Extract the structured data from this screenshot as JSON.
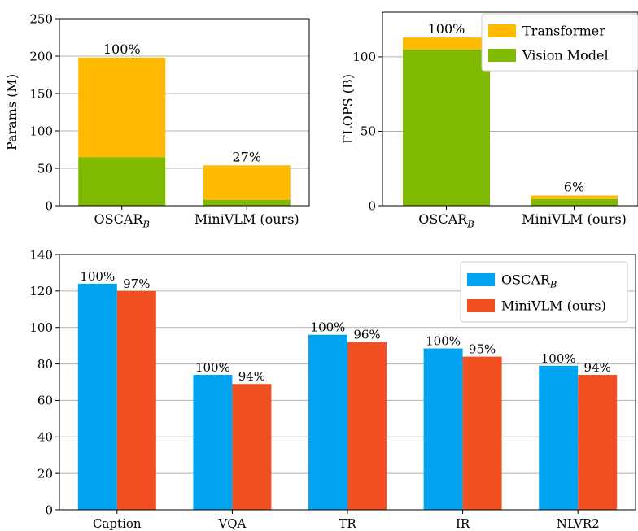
{
  "chart_data": [
    {
      "type": "bar",
      "stacked": true,
      "ylabel": "Params (M)",
      "ylim": [
        0,
        250
      ],
      "yticks": [
        0,
        50,
        100,
        150,
        200,
        250
      ],
      "categories": [
        {
          "main": "OSCAR",
          "sub": "B"
        },
        {
          "main": "MiniVLM (ours)",
          "sub": ""
        }
      ],
      "series": [
        {
          "name": "Vision Model",
          "color": "#7fba00",
          "values": [
            65,
            8
          ]
        },
        {
          "name": "Transformer",
          "color": "#ffb900",
          "values": [
            133,
            46
          ]
        }
      ],
      "bar_labels": [
        "100%",
        "27%"
      ],
      "grid": "y"
    },
    {
      "type": "bar",
      "stacked": true,
      "ylabel": "FLOPS (B)",
      "ylim": [
        0,
        130
      ],
      "yticks": [
        0,
        50,
        100
      ],
      "categories": [
        {
          "main": "OSCAR",
          "sub": "B"
        },
        {
          "main": "MiniVLM (ours)",
          "sub": ""
        }
      ],
      "series": [
        {
          "name": "Vision Model",
          "color": "#7fba00",
          "values": [
            105,
            4.5
          ]
        },
        {
          "name": "Transformer",
          "color": "#ffb900",
          "values": [
            8,
            2.3
          ]
        }
      ],
      "bar_labels": [
        "100%",
        "6%"
      ],
      "legend": {
        "position": "top-right",
        "order": [
          "Transformer",
          "Vision Model"
        ]
      },
      "grid": "y"
    },
    {
      "type": "bar",
      "grouped": true,
      "ylim": [
        0,
        140
      ],
      "yticks": [
        0,
        20,
        40,
        60,
        80,
        100,
        120,
        140
      ],
      "categories": [
        "Caption",
        "VQA",
        "TR",
        "IR",
        "NLVR2"
      ],
      "series": [
        {
          "name": {
            "main": "OSCAR",
            "sub": "B"
          },
          "color": "#00a4ef",
          "values": [
            124,
            74,
            96,
            88.5,
            79
          ],
          "labels": [
            "100%",
            "100%",
            "100%",
            "100%",
            "100%"
          ]
        },
        {
          "name": {
            "main": "MiniVLM (ours)",
            "sub": ""
          },
          "color": "#f25022",
          "values": [
            120,
            69,
            92,
            84,
            74
          ],
          "labels": [
            "97%",
            "94%",
            "96%",
            "95%",
            "94%"
          ]
        }
      ],
      "legend": {
        "position": "top-right"
      },
      "grid": "y"
    }
  ]
}
